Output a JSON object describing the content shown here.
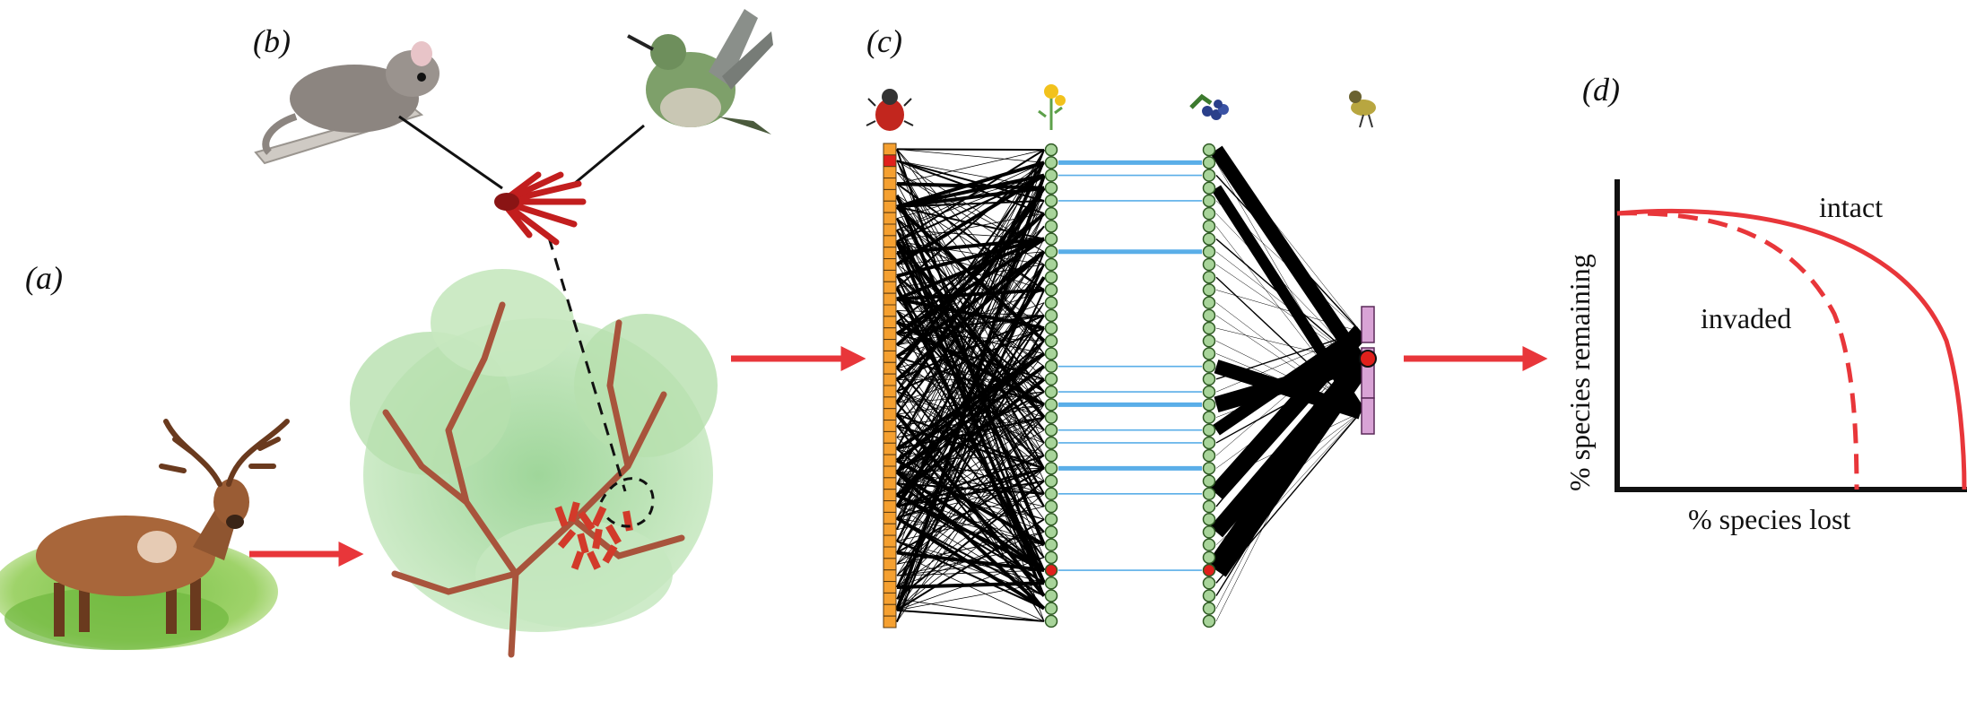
{
  "panels": {
    "a": "(a)",
    "b": "(b)",
    "c": "(c)",
    "d": "(d)"
  },
  "illustrations": {
    "panel_a": [
      "deer-icon",
      "shrub-icon"
    ],
    "panel_b": [
      "marsupial-icon",
      "hummingbird-icon",
      "red-flower-icon"
    ],
    "panel_c_headers": [
      "beetle-icon",
      "flower-icon",
      "berries-icon",
      "bird-icon"
    ]
  },
  "network": {
    "columns": 4,
    "pollinator_nodes": 42,
    "plant_nodes": 38,
    "fruit_plant_nodes": 38,
    "disperser_nodes": 3,
    "highlighted_node_color": "#e0201c",
    "node_color": "#a8d49a",
    "pollinator_color": "#f5a030",
    "disperser_color": "#d9a3d6",
    "link_color": "#000000",
    "plant_link_color": "#5aaee8"
  },
  "plot": {
    "ylabel": "% species remaining",
    "xlabel": "% species lost",
    "curves": [
      {
        "name": "intact",
        "style": "solid"
      },
      {
        "name": "invaded",
        "style": "dashed"
      }
    ],
    "curve_color": "#e8363a"
  },
  "colors": {
    "arrow": "#e8363a",
    "ink": "#111111"
  }
}
